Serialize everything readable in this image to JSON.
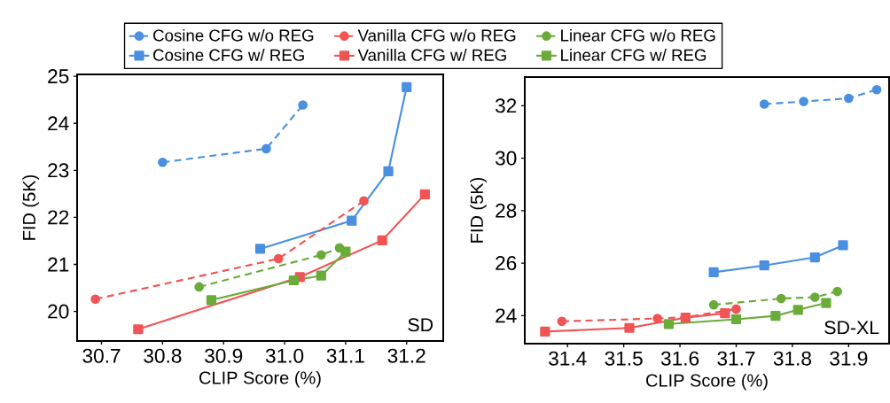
{
  "chart_data": [
    {
      "type": "line",
      "xlabel": "CLIP Score (%)",
      "ylabel": "FID (5K)",
      "annotations": [
        "SD"
      ],
      "legend": "top",
      "xlim": [
        30.66,
        31.26
      ],
      "ylim": [
        19.37,
        25.04
      ],
      "xticks": [
        30.7,
        30.8,
        30.9,
        {
          "value": 31.0,
          "label": "31.0"
        },
        31.1,
        31.2
      ],
      "yticks": [
        20,
        21,
        22,
        23,
        24,
        25
      ],
      "series": [
        {
          "name": "Cosine CFG w/o REG",
          "color": "#4a8fe0",
          "marker": "circle",
          "line_style": "dashed",
          "x": [
            30.8,
            30.97,
            31.03
          ],
          "values": [
            23.17,
            23.46,
            24.39
          ]
        },
        {
          "name": "Cosine CFG w/ REG",
          "color": "#4a8fe0",
          "marker": "square",
          "line_style": "solid",
          "x": [
            30.96,
            31.11,
            31.17,
            31.2
          ],
          "values": [
            21.33,
            21.93,
            22.98,
            24.77
          ]
        },
        {
          "name": "Vanilla CFG w/o REG",
          "color": "#f05454",
          "marker": "circle",
          "line_style": "dashed",
          "x": [
            30.69,
            30.99,
            31.13
          ],
          "values": [
            20.26,
            21.12,
            22.35
          ]
        },
        {
          "name": "Vanilla CFG w/ REG",
          "color": "#f05454",
          "marker": "square",
          "line_style": "solid",
          "x": [
            30.76,
            31.025,
            31.16,
            31.23
          ],
          "values": [
            19.62,
            20.73,
            21.51,
            22.49
          ]
        },
        {
          "name": "Linear CFG w/o REG",
          "color": "#6aab3a",
          "marker": "circle",
          "line_style": "dashed",
          "x": [
            30.86,
            31.06,
            31.09
          ],
          "values": [
            20.52,
            21.2,
            21.35
          ]
        },
        {
          "name": "Linear CFG w/ REG",
          "color": "#6aab3a",
          "marker": "square",
          "line_style": "solid",
          "x": [
            30.88,
            31.015,
            31.06,
            31.1
          ],
          "values": [
            20.24,
            20.66,
            20.76,
            21.27
          ]
        }
      ]
    },
    {
      "type": "line",
      "xlabel": "CLIP Score (%)",
      "ylabel": "FID (5K)",
      "annotations": [
        "SD-XL"
      ],
      "legend": false,
      "xlim": [
        31.324,
        31.972
      ],
      "ylim": [
        22.93,
        33.09
      ],
      "xticks": [
        31.4,
        31.5,
        31.6,
        31.7,
        31.8,
        31.9
      ],
      "yticks": [
        24,
        26,
        28,
        30,
        32
      ],
      "series": [
        {
          "color": "#4a8fe0",
          "marker": "circle",
          "line_style": "dashed",
          "x": [
            31.75,
            31.82,
            31.9,
            31.95
          ],
          "values": [
            32.06,
            32.16,
            32.28,
            32.61
          ]
        },
        {
          "color": "#4a8fe0",
          "marker": "square",
          "line_style": "solid",
          "x": [
            31.66,
            31.75,
            31.84,
            31.89
          ],
          "values": [
            25.65,
            25.91,
            26.22,
            26.68
          ]
        },
        {
          "color": "#f05454",
          "marker": "circle",
          "line_style": "dashed",
          "x": [
            31.39,
            31.56,
            31.61,
            31.7
          ],
          "values": [
            23.78,
            23.89,
            23.94,
            24.25
          ]
        },
        {
          "color": "#f05454",
          "marker": "square",
          "line_style": "solid",
          "x": [
            31.36,
            31.51,
            31.61,
            31.68
          ],
          "values": [
            23.39,
            23.53,
            23.92,
            24.09
          ]
        },
        {
          "color": "#6aab3a",
          "marker": "circle",
          "line_style": "dashed",
          "x": [
            31.66,
            31.78,
            31.84,
            31.88
          ],
          "values": [
            24.41,
            24.65,
            24.7,
            24.92
          ]
        },
        {
          "color": "#6aab3a",
          "marker": "square",
          "line_style": "solid",
          "x": [
            31.58,
            31.7,
            31.77,
            31.81,
            31.86
          ],
          "values": [
            23.68,
            23.86,
            23.99,
            24.22,
            24.48
          ]
        }
      ]
    }
  ]
}
